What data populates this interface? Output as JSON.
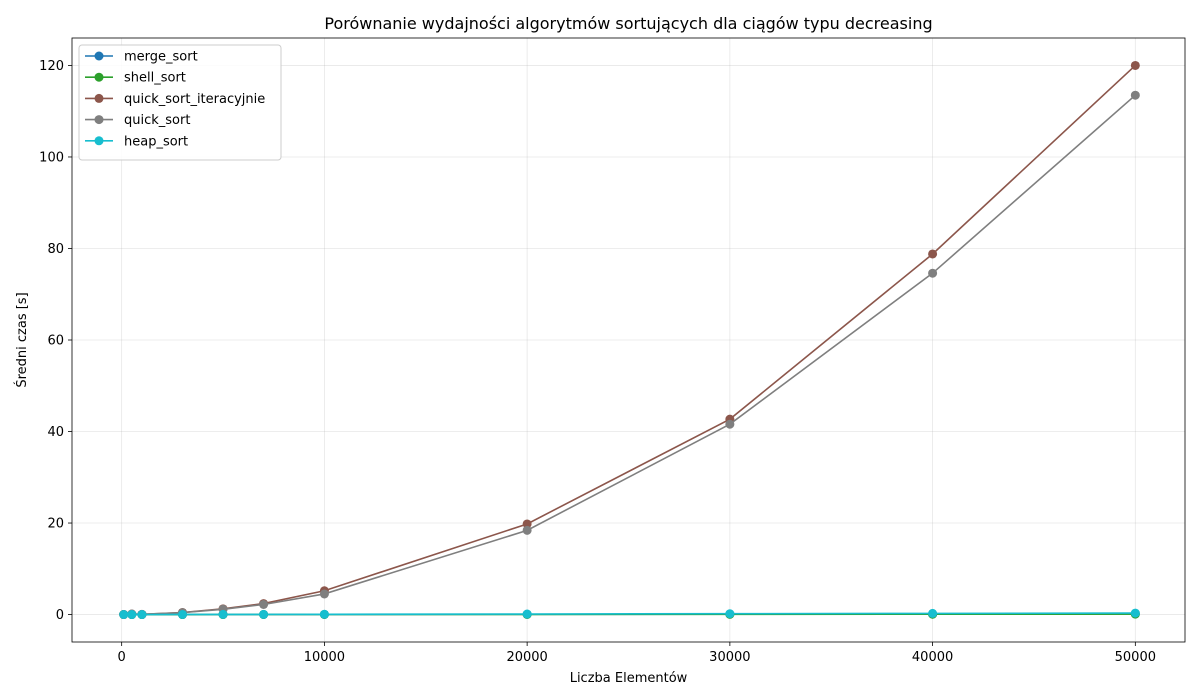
{
  "chart_data": {
    "type": "line",
    "title": "Porównanie wydajności algorytmów sortujących dla ciągów typu decreasing",
    "xlabel": "Liczba Elementów",
    "ylabel": "Średni czas [s]",
    "xlim": [
      -2450,
      52450
    ],
    "ylim": [
      -6,
      126
    ],
    "xticks": [
      0,
      10000,
      20000,
      30000,
      40000,
      50000
    ],
    "yticks": [
      0,
      20,
      40,
      60,
      80,
      100,
      120
    ],
    "grid": true,
    "legend_position": "upper-left",
    "x": [
      100,
      500,
      1000,
      3000,
      5000,
      7000,
      10000,
      20000,
      30000,
      40000,
      50000
    ],
    "series": [
      {
        "name": "merge_sort",
        "color": "#1f77b4",
        "values": [
          0.0002,
          0.001,
          0.002,
          0.006,
          0.011,
          0.016,
          0.022,
          0.047,
          0.072,
          0.098,
          0.125
        ]
      },
      {
        "name": "shell_sort",
        "color": "#2ca02c",
        "values": [
          0.0001,
          0.0005,
          0.001,
          0.004,
          0.007,
          0.011,
          0.016,
          0.035,
          0.056,
          0.078,
          0.1
        ]
      },
      {
        "name": "quick_sort_iteracyjnie",
        "color": "#8c564b",
        "values": [
          0.005,
          0.12,
          0.05,
          0.45,
          1.25,
          2.4,
          5.2,
          19.8,
          42.7,
          78.8,
          120.0
        ]
      },
      {
        "name": "quick_sort",
        "color": "#7f7f7f",
        "values": [
          0.005,
          0.11,
          0.05,
          0.42,
          1.15,
          2.2,
          4.5,
          18.4,
          41.6,
          74.6,
          113.5
        ]
      },
      {
        "name": "heap_sort",
        "color": "#17becf",
        "values": [
          0.0003,
          0.002,
          0.004,
          0.014,
          0.025,
          0.036,
          0.053,
          0.115,
          0.18,
          0.25,
          0.32
        ]
      }
    ]
  }
}
